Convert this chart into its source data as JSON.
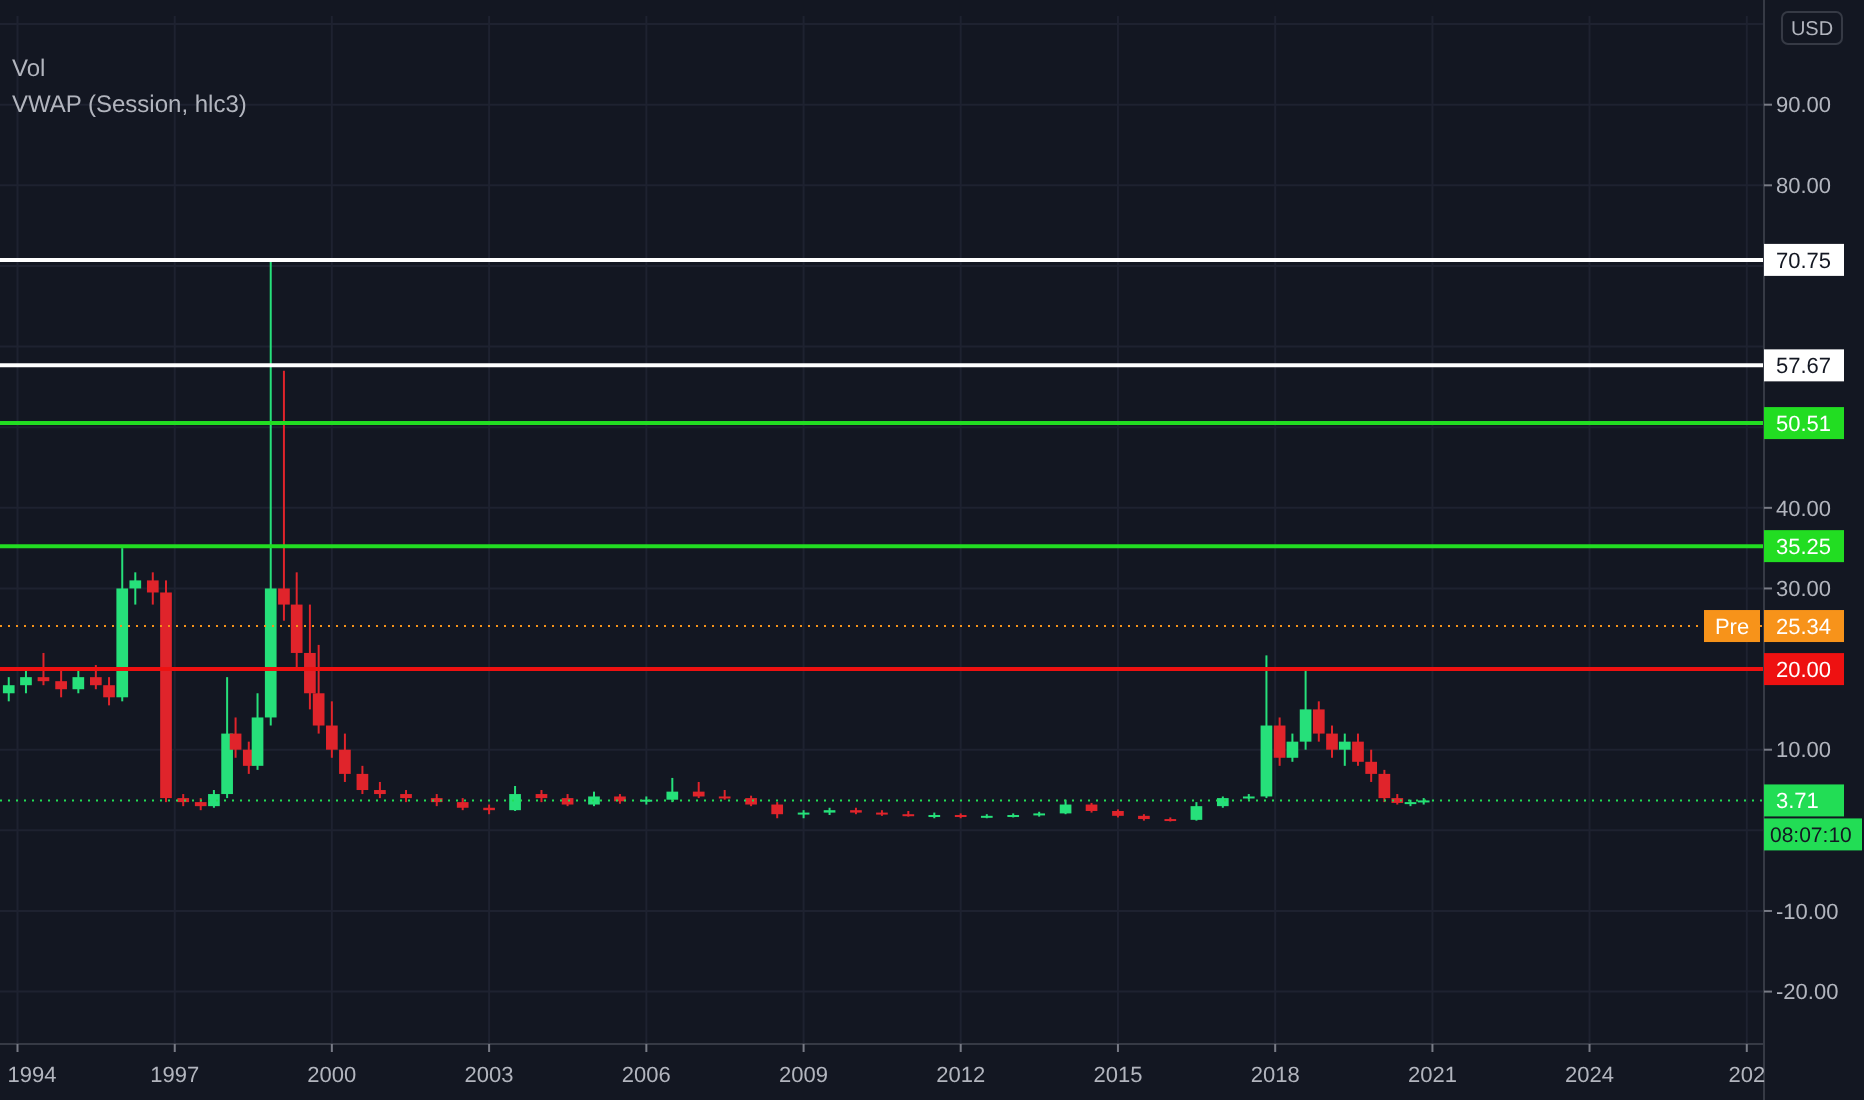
{
  "chart_data": {
    "type": "candlestick",
    "annotations": [
      "Vol",
      "VWAP (Session, hlc3)",
      "USD",
      "08:07:10"
    ],
    "x": [
      "1993-11",
      "1994-03",
      "1994-07",
      "1994-11",
      "1995-03",
      "1995-07",
      "1995-10",
      "1996-01",
      "1996-04",
      "1996-08",
      "1996-11",
      "1997-03",
      "1997-07",
      "1997-10",
      "1998-01",
      "1998-03",
      "1998-06",
      "1998-08",
      "1998-11",
      "1999-02",
      "1999-05",
      "1999-08",
      "1999-10",
      "2000-01",
      "2000-04",
      "2000-08",
      "2000-12",
      "2001-06",
      "2002-01",
      "2002-07",
      "2003-01",
      "2003-07",
      "2004-01",
      "2004-07",
      "2005-01",
      "2005-07",
      "2006-01",
      "2006-07",
      "2007-01",
      "2007-07",
      "2008-01",
      "2008-07",
      "2009-01",
      "2009-07",
      "2010-01",
      "2010-07",
      "2011-01",
      "2011-07",
      "2012-01",
      "2012-07",
      "2013-01",
      "2013-07",
      "2014-01",
      "2014-07",
      "2015-01",
      "2015-07",
      "2016-01",
      "2016-07",
      "2017-01",
      "2017-07",
      "2017-11",
      "2018-02",
      "2018-05",
      "2018-08",
      "2018-11",
      "2019-02",
      "2019-05",
      "2019-08",
      "2019-11",
      "2020-02",
      "2020-05",
      "2020-08",
      "2020-11"
    ],
    "ohlc": [
      [
        17,
        19,
        16,
        18
      ],
      [
        18,
        20,
        17,
        19
      ],
      [
        19,
        22,
        18,
        18.5
      ],
      [
        18.5,
        20,
        16.5,
        17.5
      ],
      [
        17.5,
        20,
        17,
        19
      ],
      [
        19,
        20.5,
        17.5,
        18
      ],
      [
        18,
        19,
        15.5,
        16.5
      ],
      [
        16.5,
        35,
        16,
        30
      ],
      [
        30,
        32,
        28,
        31
      ],
      [
        31,
        32,
        28,
        29.5
      ],
      [
        29.5,
        31,
        3.5,
        4
      ],
      [
        4,
        4.5,
        3,
        3.5
      ],
      [
        3.5,
        4,
        2.5,
        3
      ],
      [
        3,
        5,
        2.8,
        4.5
      ],
      [
        4.5,
        19,
        4,
        12
      ],
      [
        12,
        14,
        9,
        10
      ],
      [
        10,
        11,
        7,
        8
      ],
      [
        8,
        17,
        7.5,
        14
      ],
      [
        14,
        71,
        13,
        30
      ],
      [
        30,
        57,
        26,
        28
      ],
      [
        28,
        32,
        20,
        22
      ],
      [
        22,
        28,
        15,
        17
      ],
      [
        17,
        23,
        12,
        13
      ],
      [
        13,
        16,
        9,
        10
      ],
      [
        10,
        12,
        6,
        7
      ],
      [
        7,
        8,
        4.5,
        5
      ],
      [
        5,
        6,
        4,
        4.5
      ],
      [
        4.5,
        5,
        3.5,
        4
      ],
      [
        4,
        4.5,
        3,
        3.5
      ],
      [
        3.5,
        4,
        2.5,
        2.8
      ],
      [
        2.8,
        3.2,
        2,
        2.5
      ],
      [
        2.5,
        5.5,
        2.4,
        4.5
      ],
      [
        4.5,
        5,
        3.5,
        4
      ],
      [
        4,
        4.5,
        3,
        3.2
      ],
      [
        3.2,
        4.8,
        3,
        4.2
      ],
      [
        4.2,
        4.5,
        3.3,
        3.6
      ],
      [
        3.6,
        4.2,
        3.2,
        3.8
      ],
      [
        3.8,
        6.5,
        3.5,
        4.8
      ],
      [
        4.8,
        6,
        4,
        4.2
      ],
      [
        4.2,
        5,
        3.8,
        4
      ],
      [
        4,
        4.3,
        3,
        3.2
      ],
      [
        3.2,
        3.5,
        1.5,
        2
      ],
      [
        2,
        2.5,
        1.5,
        2.2
      ],
      [
        2.2,
        2.8,
        1.9,
        2.5
      ],
      [
        2.5,
        2.8,
        2,
        2.2
      ],
      [
        2.2,
        2.5,
        1.8,
        2
      ],
      [
        2,
        2.4,
        1.7,
        1.8
      ],
      [
        1.8,
        2.2,
        1.5,
        1.9
      ],
      [
        1.9,
        2.1,
        1.5,
        1.7
      ],
      [
        1.7,
        2,
        1.5,
        1.8
      ],
      [
        1.8,
        2.1,
        1.6,
        1.9
      ],
      [
        1.9,
        2.3,
        1.7,
        2.1
      ],
      [
        2.1,
        3.8,
        2,
        3.2
      ],
      [
        3.2,
        3.4,
        2.2,
        2.4
      ],
      [
        2.4,
        2.6,
        1.6,
        1.8
      ],
      [
        1.8,
        2,
        1.2,
        1.4
      ],
      [
        1.4,
        1.6,
        1.1,
        1.3
      ],
      [
        1.3,
        3.5,
        1.2,
        3
      ],
      [
        3,
        4.2,
        2.8,
        4
      ],
      [
        4,
        4.5,
        3.8,
        4.2
      ],
      [
        4.2,
        21.7,
        4,
        13
      ],
      [
        13,
        14,
        8,
        9
      ],
      [
        9,
        12,
        8.5,
        11
      ],
      [
        11,
        20,
        10,
        15
      ],
      [
        15,
        16,
        11,
        12
      ],
      [
        12,
        13,
        9,
        10
      ],
      [
        10,
        12,
        8,
        11
      ],
      [
        11,
        12,
        8,
        8.5
      ],
      [
        8.5,
        10,
        6,
        7
      ],
      [
        7,
        7.5,
        3.5,
        4
      ],
      [
        4,
        4.5,
        3.2,
        3.4
      ],
      [
        3.4,
        3.8,
        3,
        3.5
      ],
      [
        3.5,
        4,
        3.2,
        3.71
      ]
    ],
    "xlim": [
      "1993-09",
      "2027-05"
    ],
    "xticks": [
      {
        "value": "1994",
        "label": "1994"
      },
      {
        "value": "1997",
        "label": "1997"
      },
      {
        "value": "2000",
        "label": "2000"
      },
      {
        "value": "2003",
        "label": "2003"
      },
      {
        "value": "2006",
        "label": "2006"
      },
      {
        "value": "2009",
        "label": "2009"
      },
      {
        "value": "2012",
        "label": "2012"
      },
      {
        "value": "2015",
        "label": "2015"
      },
      {
        "value": "2018",
        "label": "2018"
      },
      {
        "value": "2021",
        "label": "2021"
      },
      {
        "value": "2024",
        "label": "2024"
      },
      {
        "value": "2027",
        "label": "202"
      }
    ],
    "ylim": [
      -26.5,
      101
    ],
    "yticks": [
      {
        "value": -20,
        "label": "-20.00"
      },
      {
        "value": -10,
        "label": "-10.00"
      },
      {
        "value": 0,
        "label": null
      },
      {
        "value": 10,
        "label": "10.00"
      },
      {
        "value": 20,
        "label": null
      },
      {
        "value": 30,
        "label": "30.00"
      },
      {
        "value": 40,
        "label": "40.00"
      },
      {
        "value": 50,
        "label": null
      },
      {
        "value": 60,
        "label": null
      },
      {
        "value": 70,
        "label": null
      },
      {
        "value": 80,
        "label": "80.00"
      },
      {
        "value": 90,
        "label": "90.00"
      },
      {
        "value": 100,
        "label": null
      }
    ],
    "grid": true,
    "ref_lines": [
      {
        "axis": "y",
        "value": 70.75,
        "label": "70.75",
        "color": "#ffffff",
        "line_style": "solid"
      },
      {
        "axis": "y",
        "value": 57.67,
        "label": "57.67",
        "color": "#ffffff",
        "line_style": "solid"
      },
      {
        "axis": "y",
        "value": 50.51,
        "label": "50.51",
        "color": "#22dd22",
        "line_style": "solid"
      },
      {
        "axis": "y",
        "value": 35.25,
        "label": "35.25",
        "color": "#22dd22",
        "line_style": "solid"
      },
      {
        "axis": "y",
        "value": 25.34,
        "label": "Pre 25.34",
        "color": "#f7931a",
        "line_style": "dotted"
      },
      {
        "axis": "y",
        "value": 20,
        "label": "20.00",
        "color": "#ee1111",
        "line_style": "solid"
      },
      {
        "axis": "y",
        "value": 3.71,
        "label": "3.71",
        "color": "#22dd55",
        "line_style": "dotted"
      }
    ]
  }
}
